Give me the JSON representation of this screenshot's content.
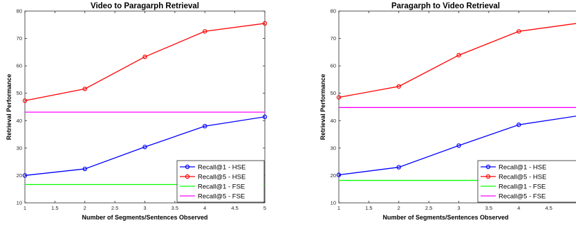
{
  "chart_data": [
    {
      "type": "line",
      "title": "Video to Paragarph Retrieval",
      "xlabel": "Number of Segments/Sentences Observed",
      "ylabel": "Retrieval Performance",
      "xlim": [
        1,
        5
      ],
      "ylim": [
        10,
        80
      ],
      "xticks": [
        "1",
        "1.5",
        "2",
        "2.5",
        "3",
        "3.5",
        "4",
        "4.5",
        "5"
      ],
      "yticks": [
        "10",
        "20",
        "30",
        "40",
        "50",
        "60",
        "70",
        "80"
      ],
      "grid": false,
      "legend_position": "bottom-right",
      "x": [
        1,
        2,
        3,
        4,
        5
      ],
      "series": [
        {
          "name": "Recall@1 - HSE",
          "color": "#0000ff",
          "marker": "circle",
          "values": [
            20.0,
            22.4,
            30.4,
            38.0,
            41.4
          ]
        },
        {
          "name": "Recall@5 - HSE",
          "color": "#ff0000",
          "marker": "circle",
          "values": [
            47.3,
            51.6,
            63.3,
            72.6,
            75.5
          ]
        },
        {
          "name": "Recall@1 - FSE",
          "color": "#00ff00",
          "marker": "none",
          "values": [
            16.7,
            16.7,
            16.7,
            16.7,
            16.7
          ]
        },
        {
          "name": "Recall@5 - FSE",
          "color": "#ff00ff",
          "marker": "none",
          "values": [
            43.1,
            43.1,
            43.1,
            43.1,
            43.1
          ]
        }
      ]
    },
    {
      "type": "line",
      "title": "Paragarph to Video Retrieval",
      "xlabel": "Number of Segments/Sentences Observed",
      "ylabel": "Retrieval Performance",
      "xlim": [
        1,
        5
      ],
      "ylim": [
        10,
        80
      ],
      "xticks": [
        "1",
        "1.5",
        "2",
        "2.5",
        "3",
        "3.5",
        "4",
        "4.5"
      ],
      "yticks": [
        "10",
        "20",
        "30",
        "40",
        "50",
        "60",
        "70",
        "80"
      ],
      "grid": false,
      "legend_position": "bottom-right",
      "x": [
        1,
        2,
        3,
        4,
        5
      ],
      "series": [
        {
          "name": "Recall@1 - HSE",
          "color": "#0000ff",
          "marker": "circle",
          "values": [
            20.2,
            23.0,
            30.9,
            38.5,
            41.8
          ]
        },
        {
          "name": "Recall@5 - HSE",
          "color": "#ff0000",
          "marker": "circle",
          "values": [
            48.5,
            52.5,
            63.9,
            72.6,
            75.6
          ]
        },
        {
          "name": "Recall@1 - FSE",
          "color": "#00ff00",
          "marker": "none",
          "values": [
            18.2,
            18.2,
            18.2,
            18.2,
            18.2
          ]
        },
        {
          "name": "Recall@5 - FSE",
          "color": "#ff00ff",
          "marker": "none",
          "values": [
            44.8,
            44.8,
            44.8,
            44.8,
            44.8
          ]
        }
      ]
    }
  ]
}
